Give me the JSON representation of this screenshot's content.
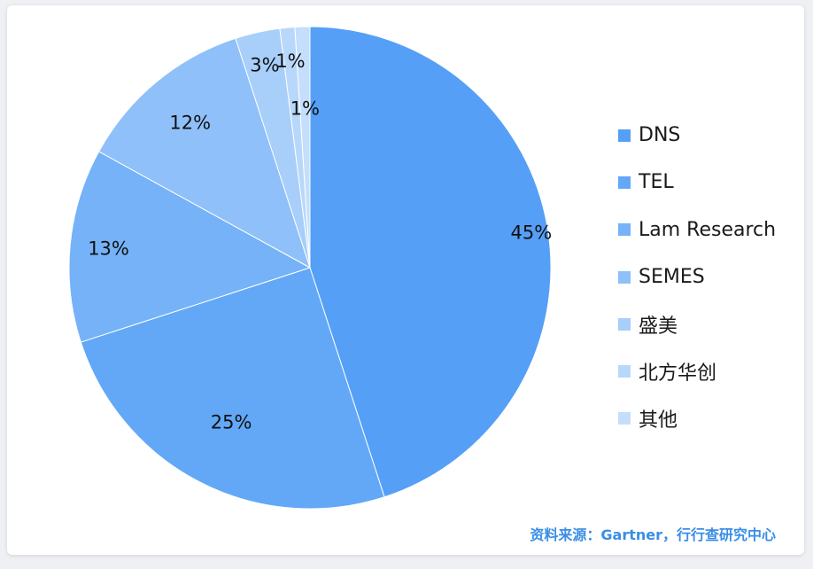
{
  "chart_data": {
    "type": "pie",
    "categories": [
      "DNS",
      "TEL",
      "Lam Research",
      "SEMES",
      "盛美",
      "北方华创",
      "其他"
    ],
    "values": [
      45,
      25,
      13,
      12,
      3,
      1,
      1
    ],
    "data_labels": [
      "45%",
      "25%",
      "13%",
      "12%",
      "3%",
      "1%",
      "1%"
    ],
    "colors": [
      "#559ff7",
      "#62a8f7",
      "#75b2f8",
      "#8fc0f9",
      "#a8cefa",
      "#b8d8fb",
      "#c4defc"
    ],
    "legend_position": "right"
  },
  "source": "资料来源：Gartner，行行查研究中心"
}
